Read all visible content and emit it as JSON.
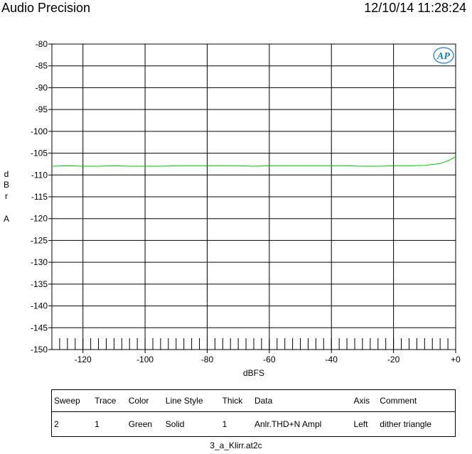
{
  "header": {
    "brand": "Audio Precision",
    "timestamp": "12/10/14 11:28:24"
  },
  "logo_text": "AP",
  "chart_data": {
    "type": "line",
    "xlabel": "dBFS",
    "ylabel": "d B r A",
    "xlim": [
      -130,
      0
    ],
    "ylim": [
      -150,
      -80
    ],
    "x_ticks": [
      -120,
      -100,
      -80,
      -60,
      -40,
      -20,
      0
    ],
    "x_tick_labels": [
      "-120",
      "-100",
      "-80",
      "-60",
      "-40",
      "-20",
      "+0"
    ],
    "y_ticks": [
      -80,
      -85,
      -90,
      -95,
      -100,
      -105,
      -110,
      -115,
      -120,
      -125,
      -130,
      -135,
      -140,
      -145,
      -150
    ],
    "grid": true,
    "series": [
      {
        "color": "#00cc00",
        "x": [
          -130,
          -125,
          -120,
          -115,
          -110,
          -105,
          -100,
          -95,
          -90,
          -85,
          -80,
          -75,
          -70,
          -65,
          -60,
          -55,
          -50,
          -45,
          -40,
          -35,
          -30,
          -25,
          -20,
          -15,
          -10,
          -5,
          -2,
          0
        ],
        "y": [
          -108.0,
          -107.9,
          -108.0,
          -108.0,
          -107.9,
          -108.0,
          -108.0,
          -108.0,
          -107.9,
          -107.9,
          -107.9,
          -107.9,
          -107.9,
          -108.0,
          -107.9,
          -107.9,
          -107.9,
          -107.9,
          -107.9,
          -107.9,
          -108.0,
          -108.0,
          -107.9,
          -107.9,
          -107.8,
          -107.4,
          -106.6,
          -105.8
        ]
      }
    ]
  },
  "legend_table": {
    "headers": [
      "Sweep",
      "Trace",
      "Color",
      "Line Style",
      "Thick",
      "Data",
      "Axis",
      "Comment"
    ],
    "rows": [
      [
        "2",
        "1",
        "Green",
        "Solid",
        "1",
        "Anlr.THD+N Ampl",
        "Left",
        "dither triangle"
      ]
    ]
  },
  "footer": {
    "filename": "3_a_Klirr.at2c"
  }
}
